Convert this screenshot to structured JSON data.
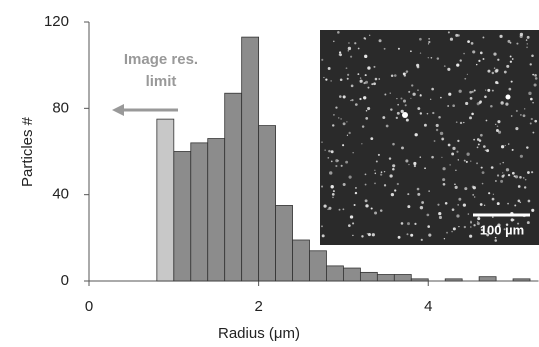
{
  "chart_data": {
    "type": "histogram",
    "xlabel": "Radius (μm)",
    "ylabel": "Particles #",
    "bins": [
      0.8,
      1.0,
      1.2,
      1.4,
      1.6,
      1.8,
      2.0,
      2.2,
      2.4,
      2.6,
      2.8,
      3.0,
      3.2,
      3.4,
      3.6,
      3.8,
      4.0,
      4.2,
      4.4,
      4.6,
      4.8,
      5.0,
      5.2
    ],
    "counts": [
      75,
      60,
      64,
      66,
      87,
      113,
      72,
      35,
      19,
      14,
      7,
      6,
      4,
      3,
      3,
      1,
      0,
      1,
      0,
      2,
      0,
      1
    ],
    "colors": [
      "#c8c8c8",
      "#8c8c8c",
      "#8c8c8c",
      "#8c8c8c",
      "#8c8c8c",
      "#8c8c8c",
      "#8c8c8c",
      "#8c8c8c",
      "#8c8c8c",
      "#8c8c8c",
      "#8c8c8c",
      "#8c8c8c",
      "#8c8c8c",
      "#8c8c8c",
      "#8c8c8c",
      "#8c8c8c",
      "#8c8c8c",
      "#8c8c8c",
      "#8c8c8c",
      "#8c8c8c",
      "#8c8c8c",
      "#8c8c8c"
    ],
    "xlim": [
      0,
      5.3
    ],
    "ylim": [
      0,
      120
    ],
    "xticks": [
      0,
      2,
      4
    ],
    "yticks": [
      0,
      40,
      80,
      120
    ],
    "annotation": [
      "Image res.",
      "limit"
    ],
    "inset": {
      "scale_label": "100 µm"
    }
  }
}
